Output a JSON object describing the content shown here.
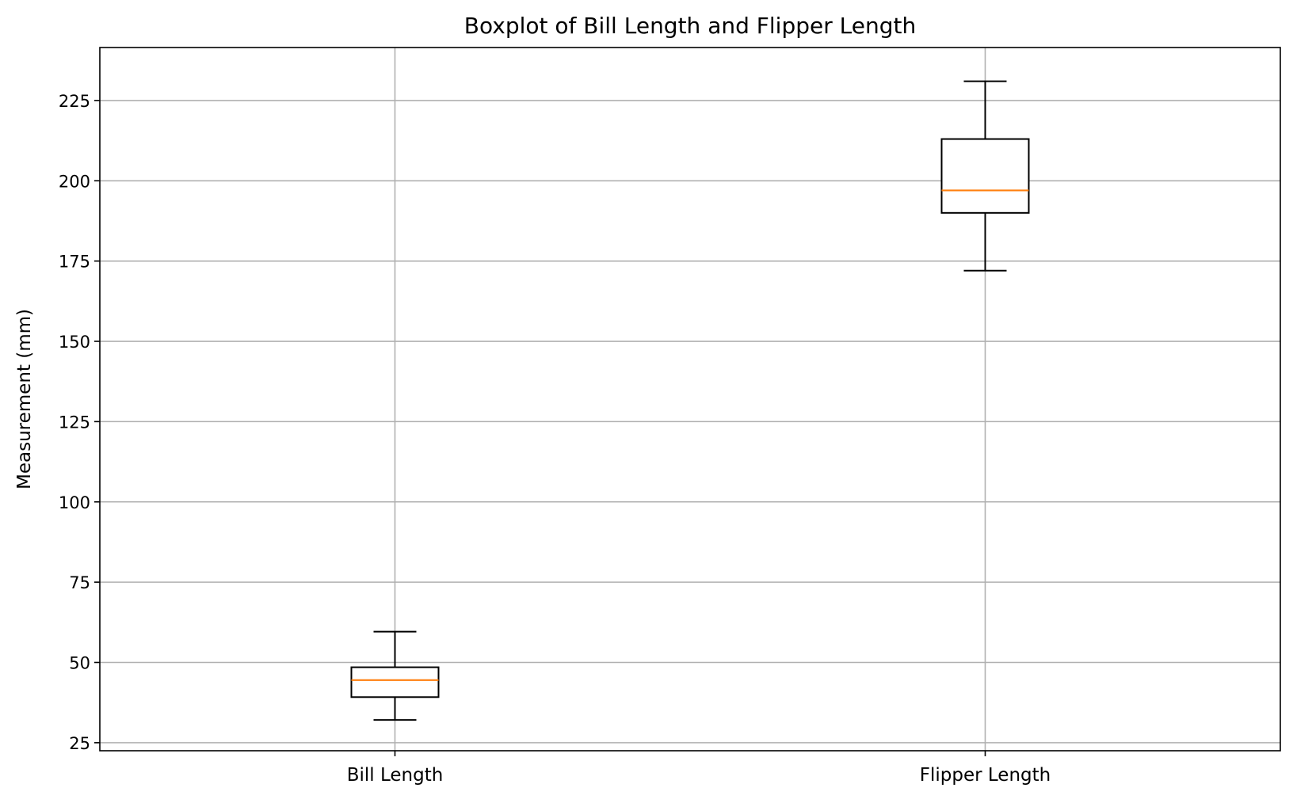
{
  "chart_data": {
    "type": "boxplot",
    "title": "Boxplot of Bill Length and Flipper Length",
    "xlabel": "",
    "ylabel": "Measurement (mm)",
    "categories": [
      "Bill Length",
      "Flipper Length"
    ],
    "boxes": [
      {
        "category": "Bill Length",
        "whisker_low": 32.1,
        "q1": 39.2,
        "median": 44.5,
        "q3": 48.5,
        "whisker_high": 59.6
      },
      {
        "category": "Flipper Length",
        "whisker_low": 172,
        "q1": 190,
        "median": 197,
        "q3": 213,
        "whisker_high": 231
      }
    ],
    "ylim": [
      22.5,
      241.5
    ],
    "yticks": [
      25,
      50,
      75,
      100,
      125,
      150,
      175,
      200,
      225
    ],
    "grid": true,
    "colors": {
      "box": "#000000",
      "median": "#ff7f0e",
      "grid": "#b0b0b0"
    }
  }
}
